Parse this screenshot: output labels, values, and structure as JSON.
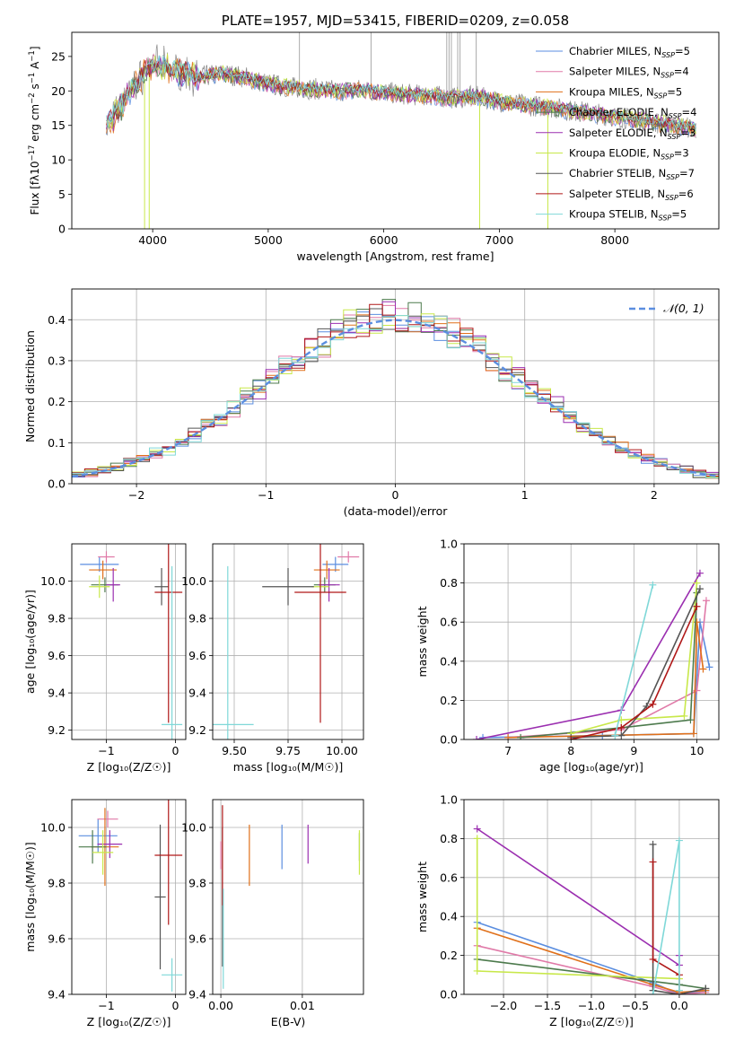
{
  "colors": {
    "Chabrier MILES": "#5b8ee0",
    "Salpeter MILES": "#e07aa8",
    "Kroupa MILES": "#e0701a",
    "Chabrier ELODIE": "#4c7a4c",
    "Salpeter ELODIE": "#9b2fb0",
    "Kroupa ELODIE": "#c8e84a",
    "Chabrier STELIB": "#555555",
    "Salpeter STELIB": "#b01818",
    "Kroupa STELIB": "#7fd8d8"
  },
  "chart_data": [
    {
      "id": "spectrum",
      "type": "line",
      "title": "PLATE=1957, MJD=53415, FIBERID=0209, z=0.058",
      "xlabel": "wavelength [Angstrom, rest frame]",
      "ylabel": "Flux [f$_\\lambda$10$^{-17}$ erg cm$^{-2}$ s$^{-1}$ A$^{-1}$]",
      "ylabel_main": "Flux [fλ10",
      "ylabel_sup1": "−17",
      "ylabel_mid": " erg cm",
      "ylabel_sup2": "−2",
      "ylabel_mid2": " s",
      "ylabel_sup3": "−1",
      "ylabel_end": " A",
      "ylabel_sup4": "−1",
      "ylabel_close": "]",
      "xlim": [
        3300,
        8900
      ],
      "ylim": [
        0,
        28.5
      ],
      "xticks": [
        4000,
        5000,
        6000,
        7000,
        8000
      ],
      "yticks": [
        0,
        5,
        10,
        15,
        20,
        25
      ],
      "continuum": [
        [
          3600,
          15
        ],
        [
          3700,
          17
        ],
        [
          3800,
          20
        ],
        [
          3900,
          22
        ],
        [
          4000,
          24
        ],
        [
          4100,
          23.5
        ],
        [
          4200,
          23
        ],
        [
          4300,
          22.5
        ],
        [
          4400,
          22
        ],
        [
          4600,
          22.5
        ],
        [
          4800,
          22
        ],
        [
          5000,
          21
        ],
        [
          5200,
          20.5
        ],
        [
          5400,
          20.3
        ],
        [
          5600,
          20
        ],
        [
          5800,
          20.2
        ],
        [
          6000,
          19.8
        ],
        [
          6200,
          19.5
        ],
        [
          6400,
          19.3
        ],
        [
          6600,
          19
        ],
        [
          6800,
          19.2
        ],
        [
          7000,
          18.5
        ],
        [
          7200,
          18
        ],
        [
          7400,
          17.7
        ],
        [
          7600,
          17.2
        ],
        [
          7800,
          16.8
        ],
        [
          8000,
          16.3
        ],
        [
          8200,
          15.8
        ],
        [
          8400,
          15.3
        ],
        [
          8600,
          14.8
        ],
        [
          8700,
          14.5
        ]
      ],
      "spikes": [
        [
          5270,
          28.5
        ],
        [
          5890,
          28.5
        ],
        [
          6545,
          28.5
        ],
        [
          6565,
          28.5
        ],
        [
          6585,
          28.5
        ],
        [
          6640,
          28.5
        ],
        [
          6660,
          28.5
        ],
        [
          6800,
          28.5
        ],
        [
          3930,
          0
        ],
        [
          3970,
          0
        ],
        [
          6830,
          0
        ],
        [
          7420,
          0
        ]
      ],
      "legend": [
        {
          "label": "Chabrier MILES, N",
          "n": "5"
        },
        {
          "label": "Salpeter MILES, N",
          "n": "4"
        },
        {
          "label": "Kroupa MILES, N",
          "n": "5"
        },
        {
          "label": "Chabrier ELODIE, N",
          "n": "4"
        },
        {
          "label": "Salpeter ELODIE, N",
          "n": "3"
        },
        {
          "label": "Kroupa ELODIE, N",
          "n": "3"
        },
        {
          "label": "Chabrier STELIB, N",
          "n": "7"
        },
        {
          "label": "Salpeter STELIB, N",
          "n": "6"
        },
        {
          "label": "Kroupa STELIB, N",
          "n": "5"
        }
      ],
      "legend_sub": "SSP",
      "legend_position": "upper right"
    },
    {
      "id": "residuals",
      "type": "line",
      "xlabel": "(data-model)/error",
      "ylabel": "Normed distribution",
      "xlim": [
        -2.5,
        2.5
      ],
      "ylim": [
        0,
        0.475
      ],
      "xticks": [
        -2,
        -1,
        0,
        1,
        2
      ],
      "xtick_labels": [
        "−2",
        "−1",
        "0",
        "1",
        "2"
      ],
      "yticks": [
        0.0,
        0.1,
        0.2,
        0.3,
        0.4
      ],
      "ytick_labels": [
        "0.0",
        "0.1",
        "0.2",
        "0.3",
        "0.4"
      ],
      "grid": true,
      "legend_label": "𝒩(0, 1)",
      "legend_position": "upper right",
      "bin_width": 0.1
    },
    {
      "id": "age-vs-Z",
      "type": "scatter",
      "xlabel": "Z [log₁₀(Z/Z☉)]",
      "ylabel": "age  [log₁₀(age/yr)]",
      "xlim": [
        -1.5,
        0.15
      ],
      "ylim": [
        9.15,
        10.2
      ],
      "xticks": [
        -1,
        0
      ],
      "xtick_labels": [
        "−1",
        "0"
      ],
      "yticks": [
        9.2,
        9.4,
        9.6,
        9.8,
        10.0
      ],
      "ytick_labels": [
        "9.2",
        "9.4",
        "9.6",
        "9.8",
        "10.0"
      ],
      "grid": true,
      "points": [
        {
          "s": "Chabrier MILES",
          "x": -1.1,
          "y": 10.09,
          "xerr": 0.28,
          "yerr": 0.04
        },
        {
          "s": "Salpeter MILES",
          "x": -1.0,
          "y": 10.13,
          "xerr": 0.12,
          "yerr": 0.03
        },
        {
          "s": "Kroupa MILES",
          "x": -1.05,
          "y": 10.06,
          "xerr": 0.2,
          "yerr": 0.05
        },
        {
          "s": "Chabrier ELODIE",
          "x": -1.02,
          "y": 9.98,
          "xerr": 0.2,
          "yerr": 0.04
        },
        {
          "s": "Salpeter ELODIE",
          "x": -0.9,
          "y": 9.98,
          "xerr": 0.1,
          "yerr": 0.09
        },
        {
          "s": "Kroupa ELODIE",
          "x": -1.1,
          "y": 9.97,
          "xerr": 0.15,
          "yerr": 0.06
        },
        {
          "s": "Chabrier STELIB",
          "x": -0.2,
          "y": 9.97,
          "xerr": 0.1,
          "yerr": 0.1
        },
        {
          "s": "Salpeter STELIB",
          "x": -0.1,
          "y": 9.94,
          "xerr": 0.2,
          "yerr": 0.7
        },
        {
          "s": "Kroupa STELIB",
          "x": -0.05,
          "y": 9.23,
          "xerr": 0.15,
          "yerr": 0.85
        }
      ]
    },
    {
      "id": "age-vs-mass",
      "type": "scatter",
      "xlabel": "mass [log₁₀(M/M☉)]",
      "xlim": [
        9.4,
        10.1
      ],
      "ylim": [
        9.15,
        10.2
      ],
      "xticks": [
        9.5,
        9.75,
        10.0
      ],
      "xtick_labels": [
        "9.50",
        "9.75",
        "10.00"
      ],
      "yticks": [
        9.2,
        9.4,
        9.6,
        9.8,
        10.0
      ],
      "ytick_labels": [
        "9.2",
        "9.4",
        "9.6",
        "9.8",
        "10.0"
      ],
      "grid": true,
      "points": [
        {
          "s": "Chabrier MILES",
          "x": 9.97,
          "y": 10.09,
          "xerr": 0.06,
          "yerr": 0.04
        },
        {
          "s": "Salpeter MILES",
          "x": 10.03,
          "y": 10.13,
          "xerr": 0.05,
          "yerr": 0.03
        },
        {
          "s": "Kroupa MILES",
          "x": 9.93,
          "y": 10.06,
          "xerr": 0.06,
          "yerr": 0.05
        },
        {
          "s": "Chabrier ELODIE",
          "x": 9.92,
          "y": 9.98,
          "xerr": 0.05,
          "yerr": 0.04
        },
        {
          "s": "Salpeter ELODIE",
          "x": 9.94,
          "y": 9.98,
          "xerr": 0.05,
          "yerr": 0.09
        },
        {
          "s": "Kroupa ELODIE",
          "x": 9.9,
          "y": 9.97,
          "xerr": 0.04,
          "yerr": 0.06
        },
        {
          "s": "Chabrier STELIB",
          "x": 9.75,
          "y": 9.97,
          "xerr": 0.12,
          "yerr": 0.1
        },
        {
          "s": "Salpeter STELIB",
          "x": 9.9,
          "y": 9.94,
          "xerr": 0.12,
          "yerr": 0.7
        },
        {
          "s": "Kroupa STELIB",
          "x": 9.47,
          "y": 9.23,
          "xerr": 0.12,
          "yerr": 0.85
        }
      ]
    },
    {
      "id": "weight-vs-age",
      "type": "line",
      "xlabel": "age  [log₁₀(age/yr)]",
      "ylabel": "mass weight",
      "xlim": [
        6.3,
        10.35
      ],
      "ylim": [
        0,
        1.0
      ],
      "xticks": [
        7,
        8,
        9,
        10
      ],
      "xtick_labels": [
        "7",
        "8",
        "9",
        "10"
      ],
      "yticks": [
        0.0,
        0.2,
        0.4,
        0.6,
        0.8,
        1.0
      ],
      "ytick_labels": [
        "0.0",
        "0.2",
        "0.4",
        "0.6",
        "0.8",
        "1.0"
      ],
      "grid": true,
      "series": [
        {
          "s": "Chabrier MILES",
          "pts": [
            [
              6.6,
              0.01
            ],
            [
              8.5,
              0.02
            ],
            [
              9.95,
              0.03
            ],
            [
              10.05,
              0.6
            ],
            [
              10.2,
              0.37
            ]
          ]
        },
        {
          "s": "Salpeter MILES",
          "pts": [
            [
              7.0,
              0.01
            ],
            [
              8.8,
              0.05
            ],
            [
              10.0,
              0.25
            ],
            [
              10.15,
              0.71
            ]
          ]
        },
        {
          "s": "Kroupa MILES",
          "pts": [
            [
              7.0,
              0.01
            ],
            [
              9.95,
              0.03
            ],
            [
              10.0,
              0.6
            ],
            [
              10.1,
              0.36
            ]
          ]
        },
        {
          "s": "Chabrier ELODIE",
          "pts": [
            [
              7.2,
              0.01
            ],
            [
              8.8,
              0.06
            ],
            [
              9.9,
              0.1
            ],
            [
              10.0,
              0.75
            ]
          ]
        },
        {
          "s": "Salpeter ELODIE",
          "pts": [
            [
              6.5,
              0.0
            ],
            [
              8.8,
              0.15
            ],
            [
              10.05,
              0.85
            ]
          ]
        },
        {
          "s": "Kroupa ELODIE",
          "pts": [
            [
              8.0,
              0.03
            ],
            [
              8.8,
              0.1
            ],
            [
              9.8,
              0.12
            ],
            [
              10.0,
              0.8
            ]
          ]
        },
        {
          "s": "Chabrier STELIB",
          "pts": [
            [
              8.0,
              0.01
            ],
            [
              8.8,
              0.02
            ],
            [
              9.2,
              0.17
            ],
            [
              10.05,
              0.77
            ]
          ]
        },
        {
          "s": "Salpeter STELIB",
          "pts": [
            [
              8.0,
              0.0
            ],
            [
              8.8,
              0.06
            ],
            [
              9.3,
              0.18
            ],
            [
              10.0,
              0.68
            ]
          ]
        },
        {
          "s": "Kroupa STELIB",
          "pts": [
            [
              8.7,
              0.02
            ],
            [
              9.3,
              0.79
            ]
          ]
        }
      ]
    },
    {
      "id": "mass-vs-Z",
      "type": "scatter",
      "xlabel": "Z [log₁₀(Z/Z☉)]",
      "ylabel": "mass [log₁₀(M/M☉)]",
      "xlim": [
        -1.5,
        0.15
      ],
      "ylim": [
        9.4,
        10.1
      ],
      "xticks": [
        -1,
        0
      ],
      "xtick_labels": [
        "−1",
        "0"
      ],
      "yticks": [
        9.4,
        9.6,
        9.8,
        10.0
      ],
      "ytick_labels": [
        "9.4",
        "9.6",
        "9.8",
        "10.0"
      ],
      "grid": true,
      "points": [
        {
          "s": "Chabrier MILES",
          "x": -1.12,
          "y": 9.97,
          "xerr": 0.28,
          "yerr": 0.06
        },
        {
          "s": "Salpeter MILES",
          "x": -0.98,
          "y": 10.03,
          "xerr": 0.15,
          "yerr": 0.03
        },
        {
          "s": "Kroupa MILES",
          "x": -1.02,
          "y": 9.93,
          "xerr": 0.2,
          "yerr": 0.14
        },
        {
          "s": "Chabrier ELODIE",
          "x": -1.2,
          "y": 9.93,
          "xerr": 0.2,
          "yerr": 0.06
        },
        {
          "s": "Salpeter ELODIE",
          "x": -0.95,
          "y": 9.94,
          "xerr": 0.18,
          "yerr": 0.05
        },
        {
          "s": "Kroupa ELODIE",
          "x": -1.05,
          "y": 9.91,
          "xerr": 0.15,
          "yerr": 0.08
        },
        {
          "s": "Chabrier STELIB",
          "x": -0.22,
          "y": 9.75,
          "xerr": 0.08,
          "yerr": 0.26
        },
        {
          "s": "Salpeter STELIB",
          "x": -0.1,
          "y": 9.9,
          "xerr": 0.2,
          "yerr": 0.25
        },
        {
          "s": "Kroupa STELIB",
          "x": -0.05,
          "y": 9.47,
          "xerr": 0.15,
          "yerr": 0.06
        }
      ]
    },
    {
      "id": "mass-vs-EBV",
      "type": "scatter",
      "xlabel": "E(B-V)",
      "xlim": [
        -0.001,
        0.0175
      ],
      "ylim": [
        9.4,
        10.1
      ],
      "xticks": [
        0.0,
        0.01
      ],
      "xtick_labels": [
        "0.00",
        "0.01"
      ],
      "yticks": [
        9.4,
        9.6,
        9.8,
        10.0
      ],
      "ytick_labels": [
        "9.4",
        "9.6",
        "9.8",
        "10.0"
      ],
      "grid": true,
      "points": [
        {
          "s": "Chabrier MILES",
          "x": 0.0075,
          "y": 9.93,
          "xerr": 0,
          "yerr": 0.08
        },
        {
          "s": "Salpeter MILES",
          "x": 0.0,
          "y": 9.9,
          "xerr": 0,
          "yerr": 0.05
        },
        {
          "s": "Kroupa MILES",
          "x": 0.0035,
          "y": 9.9,
          "xerr": 0,
          "yerr": 0.11
        },
        {
          "s": "Chabrier ELODIE",
          "x": 0.017,
          "y": 9.93,
          "xerr": 0,
          "yerr": 0.05
        },
        {
          "s": "Salpeter ELODIE",
          "x": 0.0107,
          "y": 9.94,
          "xerr": 0,
          "yerr": 0.07
        },
        {
          "s": "Kroupa ELODIE",
          "x": 0.017,
          "y": 9.91,
          "xerr": 0,
          "yerr": 0.08
        },
        {
          "s": "Chabrier STELIB",
          "x": 0.0002,
          "y": 9.75,
          "xerr": 0,
          "yerr": 0.25
        },
        {
          "s": "Salpeter STELIB",
          "x": 0.0002,
          "y": 9.9,
          "xerr": 0,
          "yerr": 0.18
        },
        {
          "s": "Kroupa STELIB",
          "x": 0.0003,
          "y": 9.6,
          "xerr": 0,
          "yerr": 0.18
        }
      ]
    },
    {
      "id": "weight-vs-Z",
      "type": "line",
      "xlabel": "Z [log₁₀(Z/Z☉)]",
      "ylabel": "mass weight",
      "xlim": [
        -2.45,
        0.45
      ],
      "ylim": [
        0,
        1.0
      ],
      "xticks": [
        -2.0,
        -1.5,
        -1.0,
        -0.5,
        0.0
      ],
      "xtick_labels": [
        "−2.0",
        "−1.5",
        "−1.0",
        "−0.5",
        "0.0"
      ],
      "yticks": [
        0.0,
        0.2,
        0.4,
        0.6,
        0.8,
        1.0
      ],
      "ytick_labels": [
        "0.0",
        "0.2",
        "0.4",
        "0.6",
        "0.8",
        "1.0"
      ],
      "grid": true,
      "series": [
        {
          "s": "Chabrier MILES",
          "pts": [
            [
              -2.3,
              0.37
            ],
            [
              -0.3,
              0.06
            ],
            [
              0.0,
              0.0
            ],
            [
              0.3,
              0.02
            ]
          ]
        },
        {
          "s": "Salpeter MILES",
          "pts": [
            [
              -2.3,
              0.25
            ],
            [
              -0.3,
              0.04
            ],
            [
              0.0,
              0.0
            ],
            [
              0.3,
              0.01
            ]
          ]
        },
        {
          "s": "Kroupa MILES",
          "pts": [
            [
              -2.3,
              0.34
            ],
            [
              -0.3,
              0.05
            ],
            [
              0.0,
              0.01
            ],
            [
              0.3,
              0.02
            ]
          ]
        },
        {
          "s": "Chabrier ELODIE",
          "pts": [
            [
              -2.3,
              0.18
            ],
            [
              0.0,
              0.05
            ],
            [
              0.3,
              0.03
            ]
          ]
        },
        {
          "s": "Salpeter ELODIE",
          "pts": [
            [
              -2.3,
              0.85
            ],
            [
              0.0,
              0.15
            ],
            [
              0.0,
              0.2
            ]
          ]
        },
        {
          "s": "Kroupa ELODIE",
          "pts": [
            [
              -2.3,
              0.8
            ],
            [
              -2.3,
              0.12
            ],
            [
              0.0,
              0.08
            ]
          ]
        },
        {
          "s": "Chabrier STELIB",
          "pts": [
            [
              -0.3,
              0.77
            ],
            [
              -0.3,
              0.02
            ],
            [
              0.0,
              0.0
            ],
            [
              0.3,
              0.03
            ]
          ]
        },
        {
          "s": "Salpeter STELIB",
          "pts": [
            [
              -0.3,
              0.68
            ],
            [
              -0.3,
              0.18
            ],
            [
              0.0,
              0.1
            ],
            [
              0.0,
              0.0
            ]
          ]
        },
        {
          "s": "Kroupa STELIB",
          "pts": [
            [
              -0.3,
              0.0
            ],
            [
              0.0,
              0.79
            ],
            [
              0.0,
              0.02
            ]
          ]
        }
      ]
    }
  ]
}
